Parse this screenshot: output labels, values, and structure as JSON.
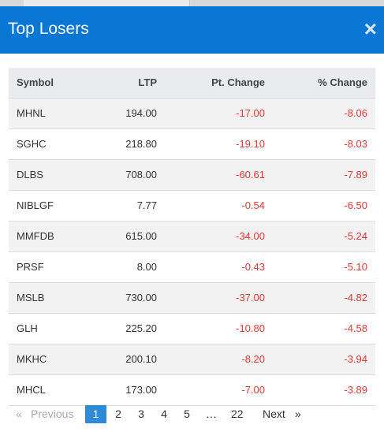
{
  "header": {
    "title": "Top Losers",
    "close": "×"
  },
  "table": {
    "columns": [
      "Symbol",
      "LTP",
      "Pt. Change",
      "% Change"
    ],
    "rows": [
      [
        "MHNL",
        "194.00",
        "-17.00",
        "-8.06"
      ],
      [
        "SGHC",
        "218.80",
        "-19.10",
        "-8.03"
      ],
      [
        "DLBS",
        "708.00",
        "-60.61",
        "-7.89"
      ],
      [
        "NIBLGF",
        "7.77",
        "-0.54",
        "-6.50"
      ],
      [
        "MMFDB",
        "615.00",
        "-34.00",
        "-5.24"
      ],
      [
        "PRSF",
        "8.00",
        "-0.43",
        "-5.10"
      ],
      [
        "MSLB",
        "730.00",
        "-37.00",
        "-4.82"
      ],
      [
        "GLH",
        "225.20",
        "-10.80",
        "-4.58"
      ],
      [
        "MKHC",
        "200.10",
        "-8.20",
        "-3.94"
      ],
      [
        "MHCL",
        "173.00",
        "-7.00",
        "-3.89"
      ]
    ]
  },
  "pagination": {
    "prev_icon": "«",
    "prev": "Previous",
    "pages": [
      "1",
      "2",
      "3",
      "4",
      "5",
      "…",
      "22"
    ],
    "next": "Next",
    "next_icon": "»"
  }
}
